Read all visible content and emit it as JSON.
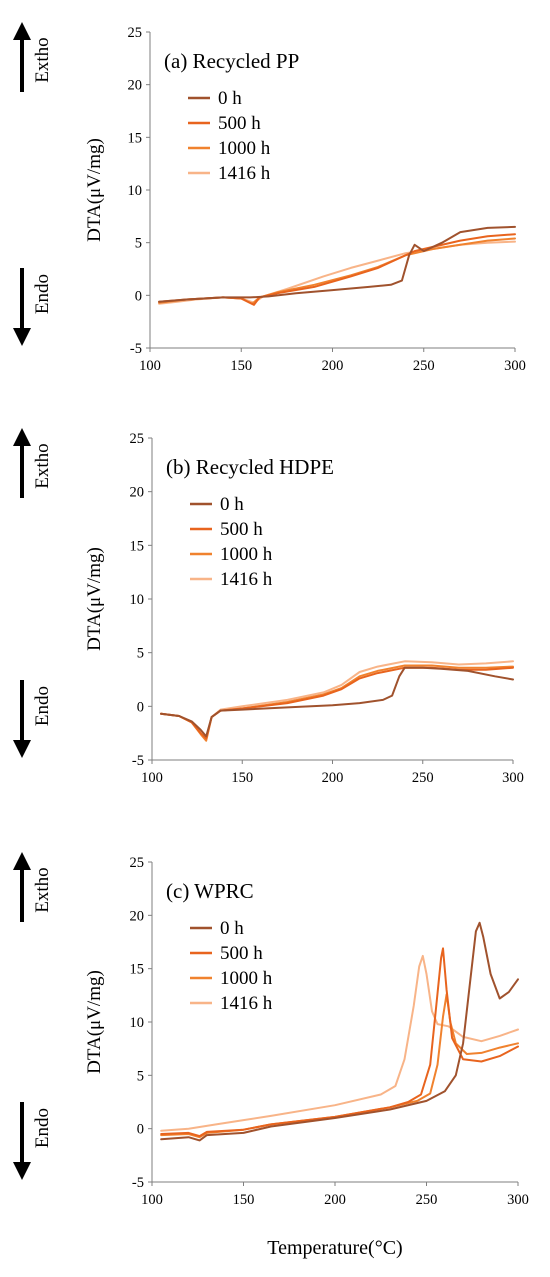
{
  "colors": {
    "0 h": "#a0522d",
    "500 h": "#e8641e",
    "1000 h": "#f0822e",
    "1416 h": "#f8b488"
  },
  "annotations": {
    "exotherm_label": "Extho",
    "endotherm_label": "Endo",
    "up_arrow_icon": "arrow-up-icon",
    "down_arrow_icon": "arrow-down-icon"
  },
  "xlabel": "Temperature(°C)",
  "chart_data": [
    {
      "type": "line",
      "title": "(a) Recycled PP",
      "ylabel": "DTA(μV/mg)",
      "xlim": [
        100,
        300
      ],
      "ylim": [
        -5,
        25
      ],
      "xticks": [
        "100",
        "150",
        "200",
        "250",
        "300"
      ],
      "yticks": [
        "-5",
        "0",
        "5",
        "10",
        "15",
        "20",
        "25"
      ],
      "series": [
        {
          "name": "0 h",
          "x": [
            105,
            120,
            140,
            155,
            165,
            180,
            200,
            220,
            232,
            238,
            242,
            245,
            250,
            260,
            270,
            285,
            300
          ],
          "y": [
            -0.6,
            -0.4,
            -0.2,
            -0.2,
            -0.1,
            0.2,
            0.5,
            0.8,
            1.0,
            1.4,
            3.8,
            4.8,
            4.2,
            5.0,
            6.0,
            6.4,
            6.5
          ]
        },
        {
          "name": "500 h",
          "x": [
            105,
            120,
            140,
            150,
            157,
            160,
            170,
            190,
            210,
            225,
            235,
            245,
            255,
            270,
            285,
            300
          ],
          "y": [
            -0.6,
            -0.4,
            -0.2,
            -0.3,
            -0.9,
            -0.2,
            0.2,
            0.8,
            1.8,
            2.6,
            3.4,
            4.2,
            4.6,
            5.2,
            5.6,
            5.8
          ]
        },
        {
          "name": "1000 h",
          "x": [
            105,
            120,
            140,
            150,
            156,
            160,
            170,
            190,
            210,
            225,
            240,
            255,
            270,
            285,
            300
          ],
          "y": [
            -0.7,
            -0.4,
            -0.2,
            -0.3,
            -0.8,
            -0.2,
            0.3,
            1.0,
            1.9,
            2.7,
            3.8,
            4.4,
            4.8,
            5.2,
            5.4
          ]
        },
        {
          "name": "1416 h",
          "x": [
            105,
            115,
            125,
            140,
            150,
            157,
            162,
            175,
            195,
            210,
            225,
            240,
            255,
            270,
            285,
            300
          ],
          "y": [
            -0.8,
            -0.6,
            -0.4,
            -0.2,
            -0.3,
            -0.7,
            -0.1,
            0.6,
            1.8,
            2.6,
            3.3,
            4.0,
            4.4,
            4.8,
            5.0,
            5.1
          ]
        }
      ]
    },
    {
      "type": "line",
      "title": "(b) Recycled HDPE",
      "ylabel": "DTA(μV/mg)",
      "xlim": [
        100,
        300
      ],
      "ylim": [
        -5,
        25
      ],
      "xticks": [
        "100",
        "150",
        "200",
        "250",
        "300"
      ],
      "yticks": [
        "-5",
        "0",
        "5",
        "10",
        "15",
        "20",
        "25"
      ],
      "series": [
        {
          "name": "0 h",
          "x": [
            105,
            115,
            122,
            127,
            130,
            133,
            138,
            150,
            175,
            200,
            215,
            228,
            233,
            237,
            240,
            250,
            260,
            275,
            290,
            300
          ],
          "y": [
            -0.7,
            -0.9,
            -1.4,
            -2.2,
            -2.8,
            -1.0,
            -0.4,
            -0.3,
            -0.1,
            0.1,
            0.3,
            0.6,
            1.0,
            2.8,
            3.6,
            3.6,
            3.5,
            3.3,
            2.8,
            2.5
          ]
        },
        {
          "name": "500 h",
          "x": [
            105,
            115,
            122,
            127,
            130,
            133,
            138,
            150,
            175,
            195,
            205,
            215,
            225,
            240,
            255,
            270,
            285,
            300
          ],
          "y": [
            -0.7,
            -0.9,
            -1.5,
            -2.5,
            -3.0,
            -1.0,
            -0.4,
            -0.2,
            0.3,
            1.0,
            1.6,
            2.6,
            3.1,
            3.6,
            3.6,
            3.4,
            3.4,
            3.6
          ]
        },
        {
          "name": "1000 h",
          "x": [
            105,
            115,
            122,
            127,
            130,
            133,
            138,
            150,
            175,
            195,
            205,
            215,
            225,
            240,
            255,
            270,
            285,
            300
          ],
          "y": [
            -0.7,
            -0.9,
            -1.5,
            -2.6,
            -3.2,
            -1.0,
            -0.4,
            -0.2,
            0.4,
            1.1,
            1.7,
            2.8,
            3.3,
            3.8,
            3.8,
            3.6,
            3.6,
            3.7
          ]
        },
        {
          "name": "1416 h",
          "x": [
            105,
            115,
            122,
            127,
            130,
            133,
            138,
            150,
            175,
            195,
            205,
            215,
            225,
            240,
            255,
            270,
            285,
            300
          ],
          "y": [
            -0.7,
            -0.9,
            -1.5,
            -2.5,
            -3.0,
            -1.0,
            -0.3,
            0.0,
            0.6,
            1.3,
            2.0,
            3.2,
            3.7,
            4.2,
            4.1,
            3.9,
            4.0,
            4.2
          ]
        }
      ]
    },
    {
      "type": "line",
      "title": "(c) WPRC",
      "ylabel": "DTA(μV/mg)",
      "xlim": [
        100,
        300
      ],
      "ylim": [
        -5,
        25
      ],
      "xticks": [
        "100",
        "150",
        "200",
        "250",
        "300"
      ],
      "yticks": [
        "-5",
        "0",
        "5",
        "10",
        "15",
        "20",
        "25"
      ],
      "series": [
        {
          "name": "0 h",
          "x": [
            105,
            120,
            126,
            130,
            150,
            165,
            200,
            230,
            250,
            260,
            266,
            270,
            274,
            277,
            279,
            281,
            285,
            290,
            295,
            300
          ],
          "y": [
            -1.0,
            -0.8,
            -1.1,
            -0.6,
            -0.4,
            0.2,
            1.0,
            1.8,
            2.6,
            3.5,
            5.0,
            8.0,
            14.0,
            18.5,
            19.3,
            18.0,
            14.5,
            12.2,
            12.8,
            14.0
          ]
        },
        {
          "name": "500 h",
          "x": [
            105,
            120,
            126,
            130,
            150,
            165,
            200,
            230,
            240,
            247,
            252,
            255,
            258,
            259,
            261,
            264,
            270,
            280,
            290,
            300
          ],
          "y": [
            -0.5,
            -0.4,
            -0.7,
            -0.3,
            -0.1,
            0.4,
            1.1,
            2.0,
            2.5,
            3.2,
            6.0,
            11.0,
            16.0,
            16.9,
            13.0,
            8.5,
            6.5,
            6.3,
            6.8,
            7.7
          ]
        },
        {
          "name": "1000 h",
          "x": [
            105,
            120,
            126,
            130,
            150,
            165,
            200,
            230,
            245,
            252,
            256,
            259,
            261,
            263,
            266,
            272,
            280,
            290,
            300
          ],
          "y": [
            -0.6,
            -0.5,
            -0.8,
            -0.4,
            -0.1,
            0.4,
            1.1,
            2.0,
            2.6,
            3.3,
            6.0,
            10.5,
            12.6,
            10.0,
            8.0,
            7.0,
            7.1,
            7.6,
            8.0
          ]
        },
        {
          "name": "1416 h",
          "x": [
            105,
            120,
            135,
            150,
            165,
            200,
            225,
            233,
            238,
            243,
            246,
            248,
            250,
            253,
            256,
            262,
            270,
            280,
            290,
            300
          ],
          "y": [
            -0.2,
            0.0,
            0.4,
            0.8,
            1.2,
            2.2,
            3.2,
            4.0,
            6.5,
            11.5,
            15.2,
            16.2,
            14.5,
            11.0,
            9.8,
            9.6,
            8.6,
            8.2,
            8.7,
            9.3
          ]
        }
      ]
    }
  ]
}
